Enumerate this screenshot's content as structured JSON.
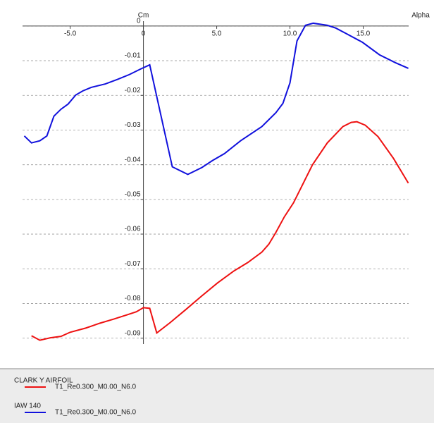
{
  "chart_data": {
    "type": "line",
    "x_label": "Alpha",
    "y_label": "Cm",
    "xlim": [
      -8.25,
      18.1
    ],
    "ylim": [
      -0.0917,
      0.0014
    ],
    "xticks": [
      {
        "value": -5,
        "label": "-5.0"
      },
      0,
      {
        "value": 5,
        "label": "5.0"
      },
      {
        "value": 10,
        "label": "10.0"
      },
      {
        "value": 15,
        "label": "15.0"
      }
    ],
    "yticks": [
      0,
      -0.01,
      -0.02,
      -0.03,
      -0.04,
      -0.05,
      -0.06,
      -0.07,
      -0.08,
      -0.09
    ],
    "grid": true,
    "series": [
      {
        "foil": "CLARK Y AIRFOIL",
        "name": "T1_Re0.300_M0.00_N6.0",
        "color": "#ee1111",
        "x": [
          -7.64,
          -7.07,
          -6.35,
          -5.63,
          -5,
          -3.94,
          -2.98,
          -2.02,
          -1.06,
          -0.48,
          0,
          0.43,
          0.91,
          1.83,
          2.88,
          3.99,
          5.05,
          6.15,
          7.12,
          8.08,
          8.56,
          9.04,
          9.62,
          10.24,
          10.96,
          11.54,
          12.55,
          13.61,
          14.18,
          14.57,
          15.14,
          16.01,
          17.07,
          18.08
        ],
        "values": [
          -0.0893,
          -0.0906,
          -0.0899,
          -0.0895,
          -0.0883,
          -0.0871,
          -0.0857,
          -0.0845,
          -0.0832,
          -0.0824,
          -0.0812,
          -0.0814,
          -0.0885,
          -0.0855,
          -0.0818,
          -0.0778,
          -0.0741,
          -0.0707,
          -0.0682,
          -0.0652,
          -0.0629,
          -0.0595,
          -0.055,
          -0.051,
          -0.0449,
          -0.04,
          -0.0337,
          -0.029,
          -0.0278,
          -0.0276,
          -0.0286,
          -0.0319,
          -0.0382,
          -0.0453
        ]
      },
      {
        "foil": "IAW 140",
        "name": "T1_Re0.300_M0.00_N6.0",
        "color": "#1111dd",
        "x": [
          -8.13,
          -7.64,
          -7.07,
          -6.59,
          -6.11,
          -5.63,
          -5.14,
          -4.62,
          -4.13,
          -3.56,
          -2.6,
          -1.78,
          -0.96,
          -0.19,
          0.43,
          1.97,
          3.03,
          3.99,
          4.71,
          5.53,
          6.63,
          8.08,
          9.04,
          9.52,
          10,
          10.48,
          11.06,
          11.59,
          12.55,
          13.13,
          13.85,
          14.95,
          16.11,
          17.21,
          18.08
        ],
        "values": [
          -0.0317,
          -0.0337,
          -0.0331,
          -0.0317,
          -0.026,
          -0.024,
          -0.0225,
          -0.0199,
          -0.0187,
          -0.0177,
          -0.0167,
          -0.0154,
          -0.014,
          -0.0124,
          -0.0112,
          -0.0406,
          -0.0428,
          -0.0408,
          -0.0388,
          -0.0368,
          -0.0331,
          -0.029,
          -0.025,
          -0.0223,
          -0.0164,
          -0.0043,
          0.0002,
          0.0008,
          0.0002,
          -0.0006,
          -0.0022,
          -0.0047,
          -0.0083,
          -0.0106,
          -0.0122
        ]
      }
    ]
  }
}
